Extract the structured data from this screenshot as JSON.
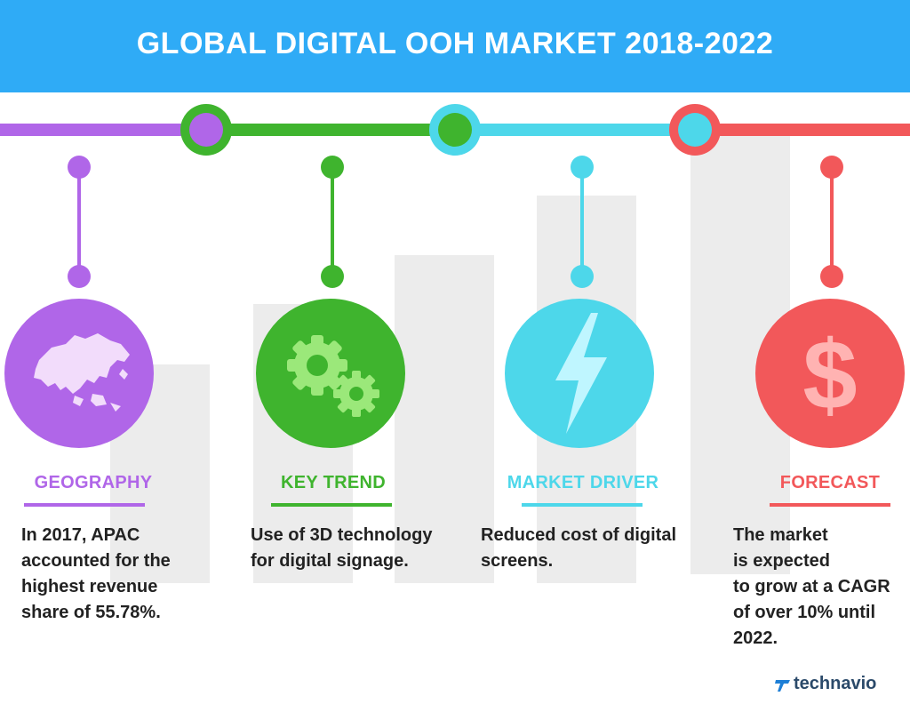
{
  "title": "GLOBAL DIGITAL OOH MARKET 2018-2022",
  "colors": {
    "header": "#2fabf6",
    "purple": "#b066e8",
    "green": "#3fb42e",
    "cyan": "#4dd7ea",
    "red": "#f2585a",
    "bars": "#ececec"
  },
  "sections": [
    {
      "id": "geography",
      "label": "GEOGRAPHY",
      "icon": "asia-map-icon",
      "color": "#b066e8",
      "text_lines": [
        "In 2017, APAC",
        "accounted for the",
        "highest revenue",
        "share of 55.78%."
      ]
    },
    {
      "id": "key-trend",
      "label": "KEY TREND",
      "icon": "gears-icon",
      "color": "#3fb42e",
      "text_lines": [
        "Use of 3D technology",
        "for digital signage."
      ]
    },
    {
      "id": "market-driver",
      "label": "MARKET DRIVER",
      "icon": "lightning-icon",
      "color": "#4dd7ea",
      "text_lines": [
        "Reduced cost of digital",
        "screens."
      ]
    },
    {
      "id": "forecast",
      "label": "FORECAST",
      "icon": "dollar-icon",
      "color": "#f2585a",
      "text_lines": [
        "The market",
        "is expected",
        "to grow at a CAGR",
        "of over 10% until",
        "2022."
      ]
    }
  ],
  "brand": {
    "name": "technavio",
    "icon": "technavio-logo-icon"
  }
}
